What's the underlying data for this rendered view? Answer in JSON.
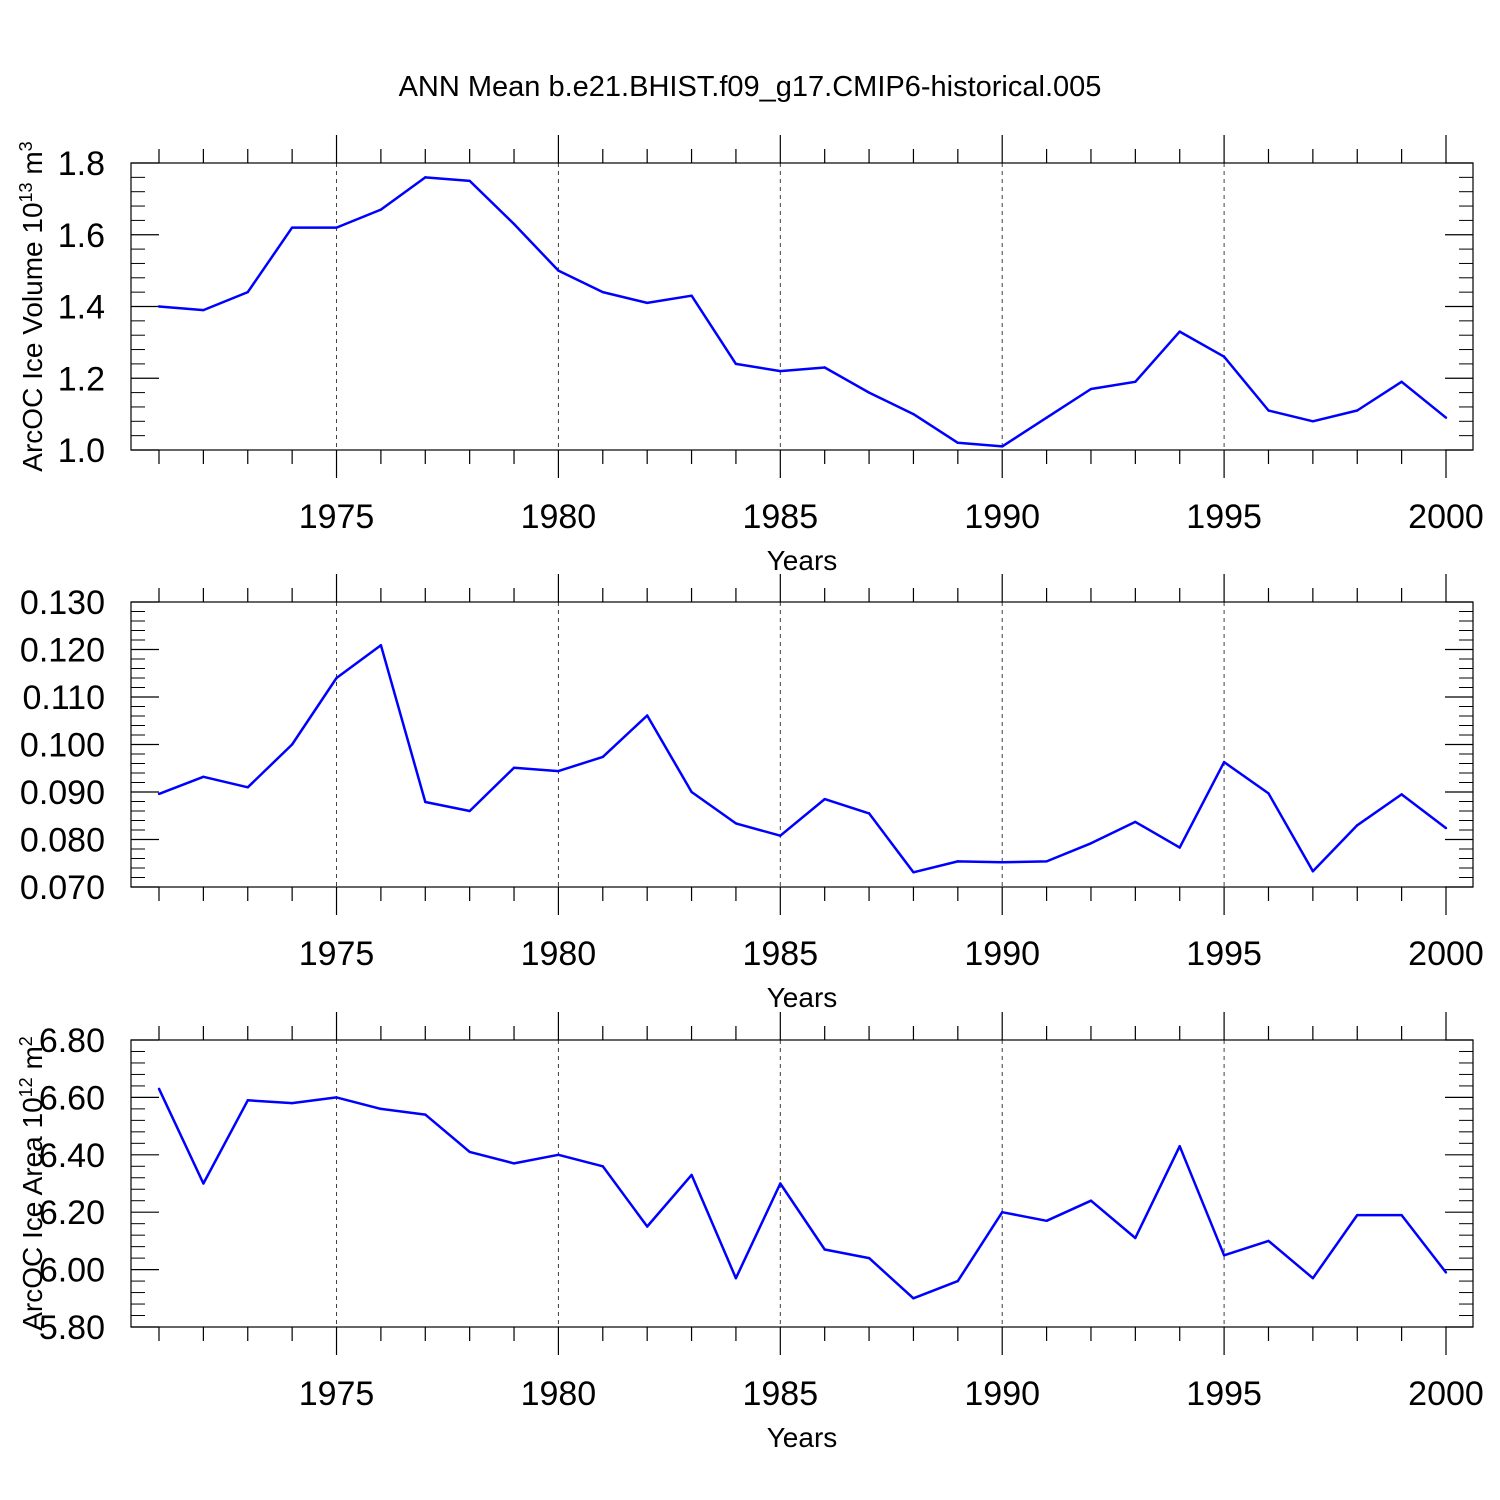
{
  "title": "ANN Mean b.e21.BHIST.f09_g17.CMIP6-historical.005",
  "colors": {
    "line": "#0000ff",
    "axis": "#000000",
    "grid": "#000000"
  },
  "chart_data": [
    {
      "type": "line",
      "xlabel": "Years",
      "ylabel": "ArcOC Ice Volume 10",
      "ylabel_exp": "13",
      "ylabel_unit": " m",
      "ylabel_unit_exp": "3",
      "xlim": [
        1971,
        2000
      ],
      "ylim": [
        1.0,
        1.8
      ],
      "x_ticks": [
        "1975",
        "1980",
        "1985",
        "1990",
        "1995",
        "2000"
      ],
      "y_ticks": [
        "1.0",
        "1.2",
        "1.4",
        "1.6",
        "1.8"
      ],
      "grid": "vertical dashed at major x ticks",
      "series": [
        {
          "x": [
            1971,
            1972,
            1973,
            1974,
            1975,
            1976,
            1977,
            1978,
            1979,
            1980,
            1981,
            1982,
            1983,
            1984,
            1985,
            1986,
            1987,
            1988,
            1989,
            1990,
            1991,
            1992,
            1993,
            1994,
            1995,
            1996,
            1997,
            1998,
            1999,
            2000
          ],
          "values": [
            1.4,
            1.39,
            1.44,
            1.62,
            1.62,
            1.67,
            1.76,
            1.75,
            1.63,
            1.5,
            1.44,
            1.41,
            1.43,
            1.24,
            1.22,
            1.23,
            1.16,
            1.1,
            1.02,
            1.01,
            1.09,
            1.17,
            1.19,
            1.33,
            1.26,
            1.11,
            1.08,
            1.11,
            1.19,
            1.09
          ]
        }
      ]
    },
    {
      "type": "line",
      "xlabel": "Years",
      "ylabel": "",
      "xlim": [
        1971,
        2000
      ],
      "ylim": [
        0.07,
        0.13
      ],
      "x_ticks": [
        "1975",
        "1980",
        "1985",
        "1990",
        "1995",
        "2000"
      ],
      "y_ticks": [
        "0.070",
        "0.080",
        "0.090",
        "0.100",
        "0.110",
        "0.120",
        "0.130"
      ],
      "grid": "vertical dashed at major x ticks",
      "series": [
        {
          "x": [
            1971,
            1972,
            1973,
            1974,
            1975,
            1976,
            1977,
            1978,
            1979,
            1980,
            1981,
            1982,
            1983,
            1984,
            1985,
            1986,
            1987,
            1988,
            1989,
            1990,
            1991,
            1992,
            1993,
            1994,
            1995,
            1996,
            1997,
            1998,
            1999,
            2000
          ],
          "values": [
            0.0896,
            0.0932,
            0.091,
            0.1,
            0.114,
            0.1209,
            0.0879,
            0.086,
            0.0951,
            0.0944,
            0.0974,
            0.1061,
            0.09,
            0.0834,
            0.0808,
            0.0885,
            0.0855,
            0.0731,
            0.0754,
            0.0752,
            0.0754,
            0.0792,
            0.0837,
            0.0783,
            0.0963,
            0.0897,
            0.0733,
            0.083,
            0.0895,
            0.0824
          ]
        }
      ]
    },
    {
      "type": "line",
      "xlabel": "Years",
      "ylabel": "ArcOC Ice Area 10",
      "ylabel_exp": "12",
      "ylabel_unit": " m",
      "ylabel_unit_exp": "2",
      "xlim": [
        1971,
        2000
      ],
      "ylim": [
        5.8,
        6.8
      ],
      "x_ticks": [
        "1975",
        "1980",
        "1985",
        "1990",
        "1995",
        "2000"
      ],
      "y_ticks": [
        "5.80",
        "6.00",
        "6.20",
        "6.40",
        "6.60",
        "6.80"
      ],
      "grid": "vertical dashed at major x ticks",
      "series": [
        {
          "x": [
            1971,
            1972,
            1973,
            1974,
            1975,
            1976,
            1977,
            1978,
            1979,
            1980,
            1981,
            1982,
            1983,
            1984,
            1985,
            1986,
            1987,
            1988,
            1989,
            1990,
            1991,
            1992,
            1993,
            1994,
            1995,
            1996,
            1997,
            1998,
            1999,
            2000
          ],
          "values": [
            6.63,
            6.3,
            6.59,
            6.58,
            6.6,
            6.56,
            6.54,
            6.41,
            6.37,
            6.4,
            6.36,
            6.15,
            6.33,
            5.97,
            6.3,
            6.07,
            6.04,
            5.9,
            5.96,
            6.2,
            6.17,
            6.24,
            6.11,
            6.43,
            6.05,
            6.1,
            5.97,
            6.19,
            6.19,
            5.99
          ]
        }
      ]
    }
  ]
}
